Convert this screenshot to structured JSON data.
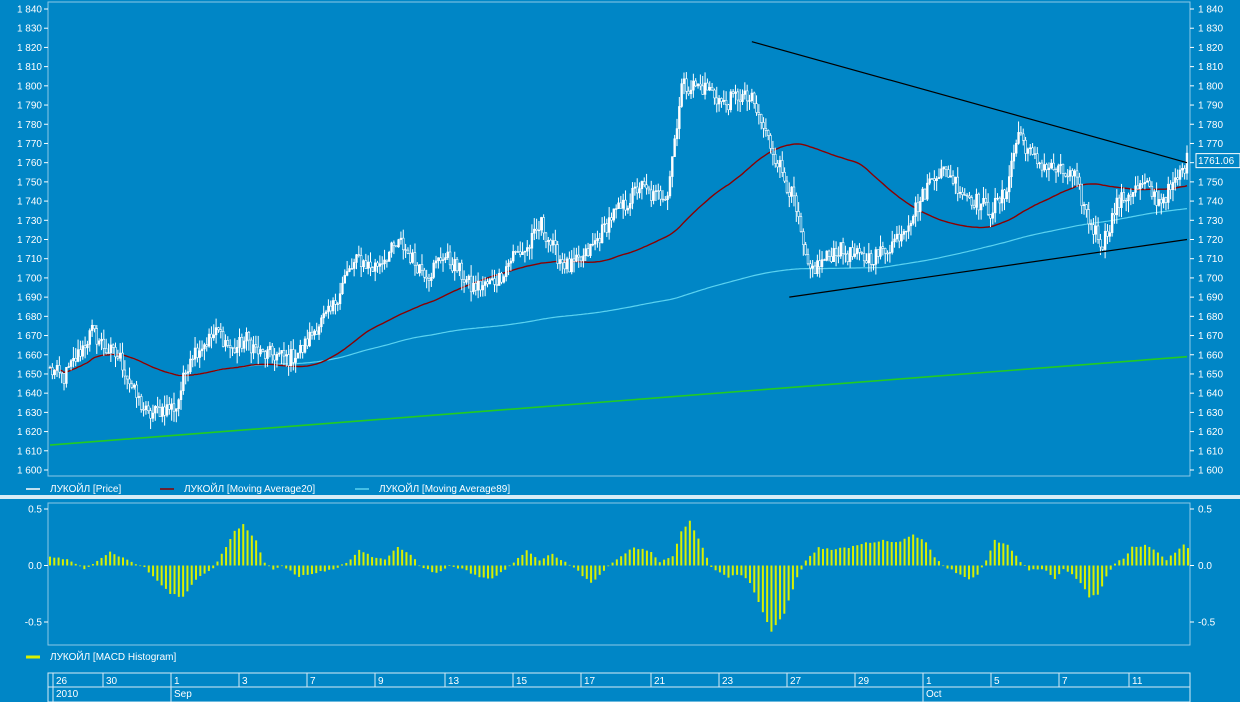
{
  "chart_data": [
    {
      "type": "candlestick",
      "instrument": "ЛУКОЙЛ",
      "ylim": [
        1600,
        1840
      ],
      "y_ticks": [
        "1 600",
        "1 610",
        "1 620",
        "1 630",
        "1 640",
        "1 650",
        "1 660",
        "1 670",
        "1 680",
        "1 690",
        "1 700",
        "1 710",
        "1 720",
        "1 730",
        "1 740",
        "1 750",
        "1 760",
        "1 770",
        "1 780",
        "1 790",
        "1 800",
        "1 810",
        "1 820",
        "1 830",
        "1 840"
      ],
      "last_price_label": "1761.06",
      "legend": [
        {
          "label": "ЛУКОЙЛ [Price]",
          "color": "#ffffff"
        },
        {
          "label": "ЛУКОЙЛ [Moving Average20]",
          "color": "#8b0000"
        },
        {
          "label": "ЛУКОЙЛ [Moving Average89]",
          "color": "#5ad2f0"
        }
      ],
      "price_anchors": [
        [
          0,
          1652
        ],
        [
          6,
          1648
        ],
        [
          12,
          1660
        ],
        [
          18,
          1672
        ],
        [
          24,
          1663
        ],
        [
          30,
          1658
        ],
        [
          36,
          1640
        ],
        [
          42,
          1628
        ],
        [
          48,
          1632
        ],
        [
          54,
          1633
        ],
        [
          60,
          1660
        ],
        [
          66,
          1666
        ],
        [
          72,
          1672
        ],
        [
          78,
          1662
        ],
        [
          84,
          1668
        ],
        [
          90,
          1660
        ],
        [
          96,
          1660
        ],
        [
          102,
          1658
        ],
        [
          108,
          1663
        ],
        [
          114,
          1675
        ],
        [
          120,
          1682
        ],
        [
          126,
          1700
        ],
        [
          132,
          1710
        ],
        [
          138,
          1705
        ],
        [
          144,
          1712
        ],
        [
          150,
          1718
        ],
        [
          156,
          1708
        ],
        [
          162,
          1702
        ],
        [
          168,
          1712
        ],
        [
          174,
          1705
        ],
        [
          180,
          1695
        ],
        [
          186,
          1696
        ],
        [
          192,
          1700
        ],
        [
          198,
          1712
        ],
        [
          204,
          1715
        ],
        [
          210,
          1728
        ],
        [
          216,
          1713
        ],
        [
          222,
          1705
        ],
        [
          228,
          1710
        ],
        [
          234,
          1720
        ],
        [
          240,
          1732
        ],
        [
          246,
          1738
        ],
        [
          252,
          1748
        ],
        [
          258,
          1742
        ],
        [
          264,
          1745
        ],
        [
          270,
          1800
        ],
        [
          276,
          1800
        ],
        [
          282,
          1798
        ],
        [
          288,
          1790
        ],
        [
          294,
          1795
        ],
        [
          300,
          1792
        ],
        [
          306,
          1775
        ],
        [
          312,
          1758
        ],
        [
          318,
          1740
        ],
        [
          324,
          1703
        ],
        [
          330,
          1708
        ],
        [
          336,
          1715
        ],
        [
          342,
          1712
        ],
        [
          348,
          1710
        ],
        [
          354,
          1712
        ],
        [
          360,
          1718
        ],
        [
          366,
          1728
        ],
        [
          372,
          1740
        ],
        [
          378,
          1755
        ],
        [
          384,
          1755
        ],
        [
          390,
          1745
        ],
        [
          396,
          1740
        ],
        [
          402,
          1735
        ],
        [
          408,
          1743
        ],
        [
          414,
          1776
        ],
        [
          420,
          1762
        ],
        [
          426,
          1758
        ],
        [
          432,
          1755
        ],
        [
          438,
          1752
        ],
        [
          444,
          1730
        ],
        [
          450,
          1718
        ],
        [
          456,
          1738
        ],
        [
          462,
          1745
        ],
        [
          468,
          1748
        ],
        [
          474,
          1740
        ],
        [
          480,
          1747
        ],
        [
          486,
          1761
        ]
      ],
      "n_candles": 487,
      "ma20_color": "#8b0000",
      "ma89_color": "#5ad2f0",
      "trendlines": [
        {
          "name": "upper-resistance",
          "from": [
            300,
            1823
          ],
          "to": [
            486,
            1760
          ],
          "color": "#000000"
        },
        {
          "name": "lower-support",
          "from": [
            316,
            1690
          ],
          "to": [
            486,
            1720
          ],
          "color": "#000000"
        },
        {
          "name": "long-term-support",
          "from": [
            0,
            1613
          ],
          "to": [
            486,
            1659
          ],
          "color": "#22cc22"
        }
      ]
    },
    {
      "type": "bar",
      "series_name": "ЛУКОЙЛ [MACD Histogram]",
      "ylim": [
        -0.72,
        0.58
      ],
      "y_ticks": [
        "0.5",
        "0.0",
        "-0.5"
      ],
      "bar_color": "#d8f000",
      "anchors": [
        [
          0,
          0.08
        ],
        [
          4,
          0.05
        ],
        [
          8,
          -0.03
        ],
        [
          10,
          0.02
        ],
        [
          14,
          0.12
        ],
        [
          18,
          0.05
        ],
        [
          22,
          -0.02
        ],
        [
          28,
          -0.25
        ],
        [
          31,
          -0.28
        ],
        [
          34,
          -0.12
        ],
        [
          38,
          -0.02
        ],
        [
          40,
          0.1
        ],
        [
          43,
          0.3
        ],
        [
          45,
          0.36
        ],
        [
          48,
          0.22
        ],
        [
          50,
          0.02
        ],
        [
          52,
          -0.03
        ],
        [
          54,
          0.0
        ],
        [
          58,
          -0.1
        ],
        [
          62,
          -0.06
        ],
        [
          66,
          -0.04
        ],
        [
          70,
          0.05
        ],
        [
          72,
          0.14
        ],
        [
          75,
          0.08
        ],
        [
          78,
          0.06
        ],
        [
          81,
          0.16
        ],
        [
          84,
          0.1
        ],
        [
          86,
          0.0
        ],
        [
          90,
          -0.07
        ],
        [
          93,
          0.0
        ],
        [
          96,
          -0.03
        ],
        [
          100,
          -0.1
        ],
        [
          103,
          -0.12
        ],
        [
          106,
          -0.03
        ],
        [
          108,
          0.02
        ],
        [
          111,
          0.14
        ],
        [
          114,
          0.05
        ],
        [
          117,
          0.1
        ],
        [
          120,
          0.03
        ],
        [
          123,
          -0.05
        ],
        [
          126,
          -0.16
        ],
        [
          129,
          -0.05
        ],
        [
          132,
          0.06
        ],
        [
          136,
          0.16
        ],
        [
          140,
          0.12
        ],
        [
          142,
          0.03
        ],
        [
          145,
          0.08
        ],
        [
          147,
          0.3
        ],
        [
          149,
          0.4
        ],
        [
          152,
          0.15
        ],
        [
          154,
          -0.02
        ],
        [
          158,
          -0.1
        ],
        [
          161,
          -0.08
        ],
        [
          163,
          -0.15
        ],
        [
          166,
          -0.42
        ],
        [
          168,
          -0.58
        ],
        [
          171,
          -0.42
        ],
        [
          174,
          -0.1
        ],
        [
          176,
          0.04
        ],
        [
          179,
          0.16
        ],
        [
          182,
          0.14
        ],
        [
          186,
          0.16
        ],
        [
          190,
          0.2
        ],
        [
          194,
          0.22
        ],
        [
          198,
          0.21
        ],
        [
          201,
          0.28
        ],
        [
          204,
          0.2
        ],
        [
          206,
          0.08
        ],
        [
          208,
          0.0
        ],
        [
          210,
          -0.04
        ],
        [
          214,
          -0.12
        ],
        [
          216,
          -0.08
        ],
        [
          218,
          0.04
        ],
        [
          220,
          0.22
        ],
        [
          223,
          0.18
        ],
        [
          226,
          0.03
        ],
        [
          228,
          -0.04
        ],
        [
          232,
          -0.04
        ],
        [
          234,
          -0.12
        ],
        [
          236,
          -0.03
        ],
        [
          238,
          -0.08
        ],
        [
          240,
          -0.15
        ],
        [
          242,
          -0.28
        ],
        [
          244,
          -0.26
        ],
        [
          246,
          -0.1
        ],
        [
          248,
          0.02
        ],
        [
          250,
          0.06
        ],
        [
          252,
          0.16
        ],
        [
          255,
          0.18
        ],
        [
          258,
          0.12
        ],
        [
          260,
          0.05
        ],
        [
          262,
          0.12
        ],
        [
          264,
          0.18
        ],
        [
          265,
          0.16
        ]
      ],
      "n_bars": 266
    }
  ],
  "timeline": {
    "day_labels": [
      "26",
      "30",
      "1",
      "3",
      "7",
      "9",
      "13",
      "15",
      "17",
      "21",
      "23",
      "27",
      "29",
      "1",
      "5",
      "7",
      "11"
    ],
    "month_labels": [
      "2010",
      "Sep",
      "Oct"
    ]
  }
}
